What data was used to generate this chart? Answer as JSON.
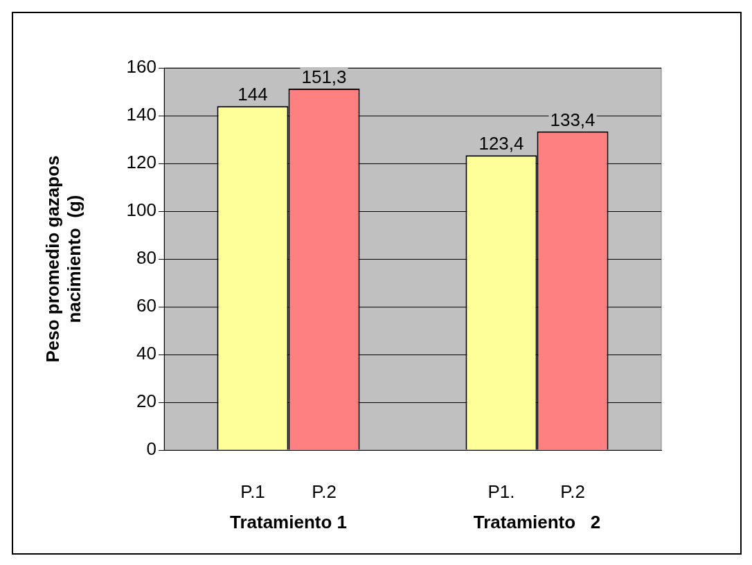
{
  "chart_data": {
    "type": "bar",
    "ylabel": "Peso promedio gazapos\nnacimiento  (g)",
    "categories": [
      "Tratamiento 1",
      "Tratamiento   2"
    ],
    "series": [
      {
        "color": "#ffff99",
        "values": [
          144,
          123.4
        ],
        "value_labels": [
          "144",
          "123,4"
        ]
      },
      {
        "color": "#ff8080",
        "values": [
          151.3,
          133.4
        ],
        "value_labels": [
          "151,3",
          "133,4"
        ]
      }
    ],
    "annotations": [
      "P.1",
      "P.2",
      "P1.",
      "P.2"
    ],
    "ylim": [
      0,
      160
    ],
    "yticks": [
      0,
      20,
      40,
      60,
      80,
      100,
      120,
      140,
      160
    ],
    "grid": "y",
    "legend": false
  }
}
